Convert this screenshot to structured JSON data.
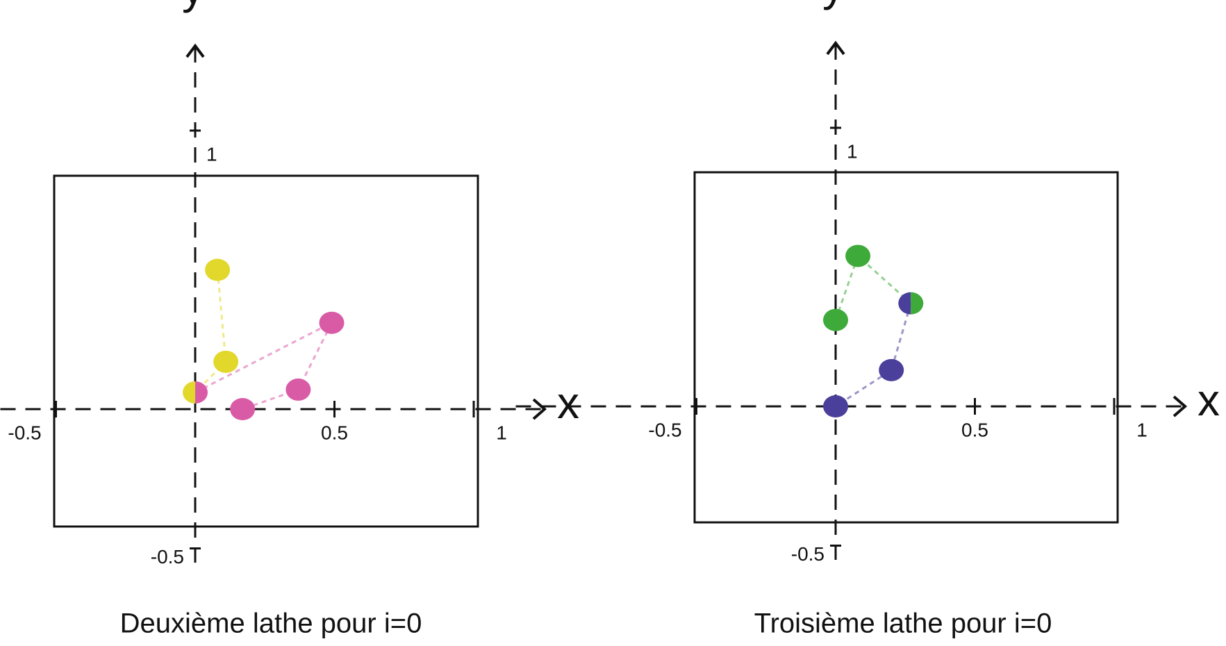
{
  "chart_data": [
    {
      "type": "scatter",
      "title": "Deuxième lathe pour i=0",
      "x_label": "x",
      "y_label": "y",
      "xlim": [
        -0.5,
        1
      ],
      "ylim": [
        -0.5,
        1
      ],
      "xticks": [
        -0.5,
        0.5,
        1
      ],
      "yticks": [
        -0.5,
        1
      ],
      "series": [
        {
          "color": "#e2d82c",
          "x": [
            0.08,
            0.11,
            0
          ],
          "y": [
            0.5,
            0.17,
            0.06
          ]
        },
        {
          "color": "#d95ba6",
          "x": [
            0,
            0.49,
            0.37,
            0.17
          ],
          "y": [
            0.06,
            0.31,
            0.07,
            0
          ]
        }
      ]
    },
    {
      "type": "scatter",
      "title": "Troisième lathe pour i=0",
      "x_label": "x",
      "y_label": "y",
      "xlim": [
        -0.5,
        1
      ],
      "ylim": [
        -0.5,
        1
      ],
      "xticks": [
        -0.5,
        0.5,
        1
      ],
      "yticks": [
        -0.5,
        1
      ],
      "series": [
        {
          "color": "#4a3f9a",
          "x": [
            0.27,
            0.2,
            0
          ],
          "y": [
            0.37,
            0.13,
            0
          ]
        },
        {
          "color": "#3daa3a",
          "x": [
            0,
            0.08,
            0.27
          ],
          "y": [
            0.31,
            0.54,
            0.37
          ]
        }
      ]
    }
  ]
}
